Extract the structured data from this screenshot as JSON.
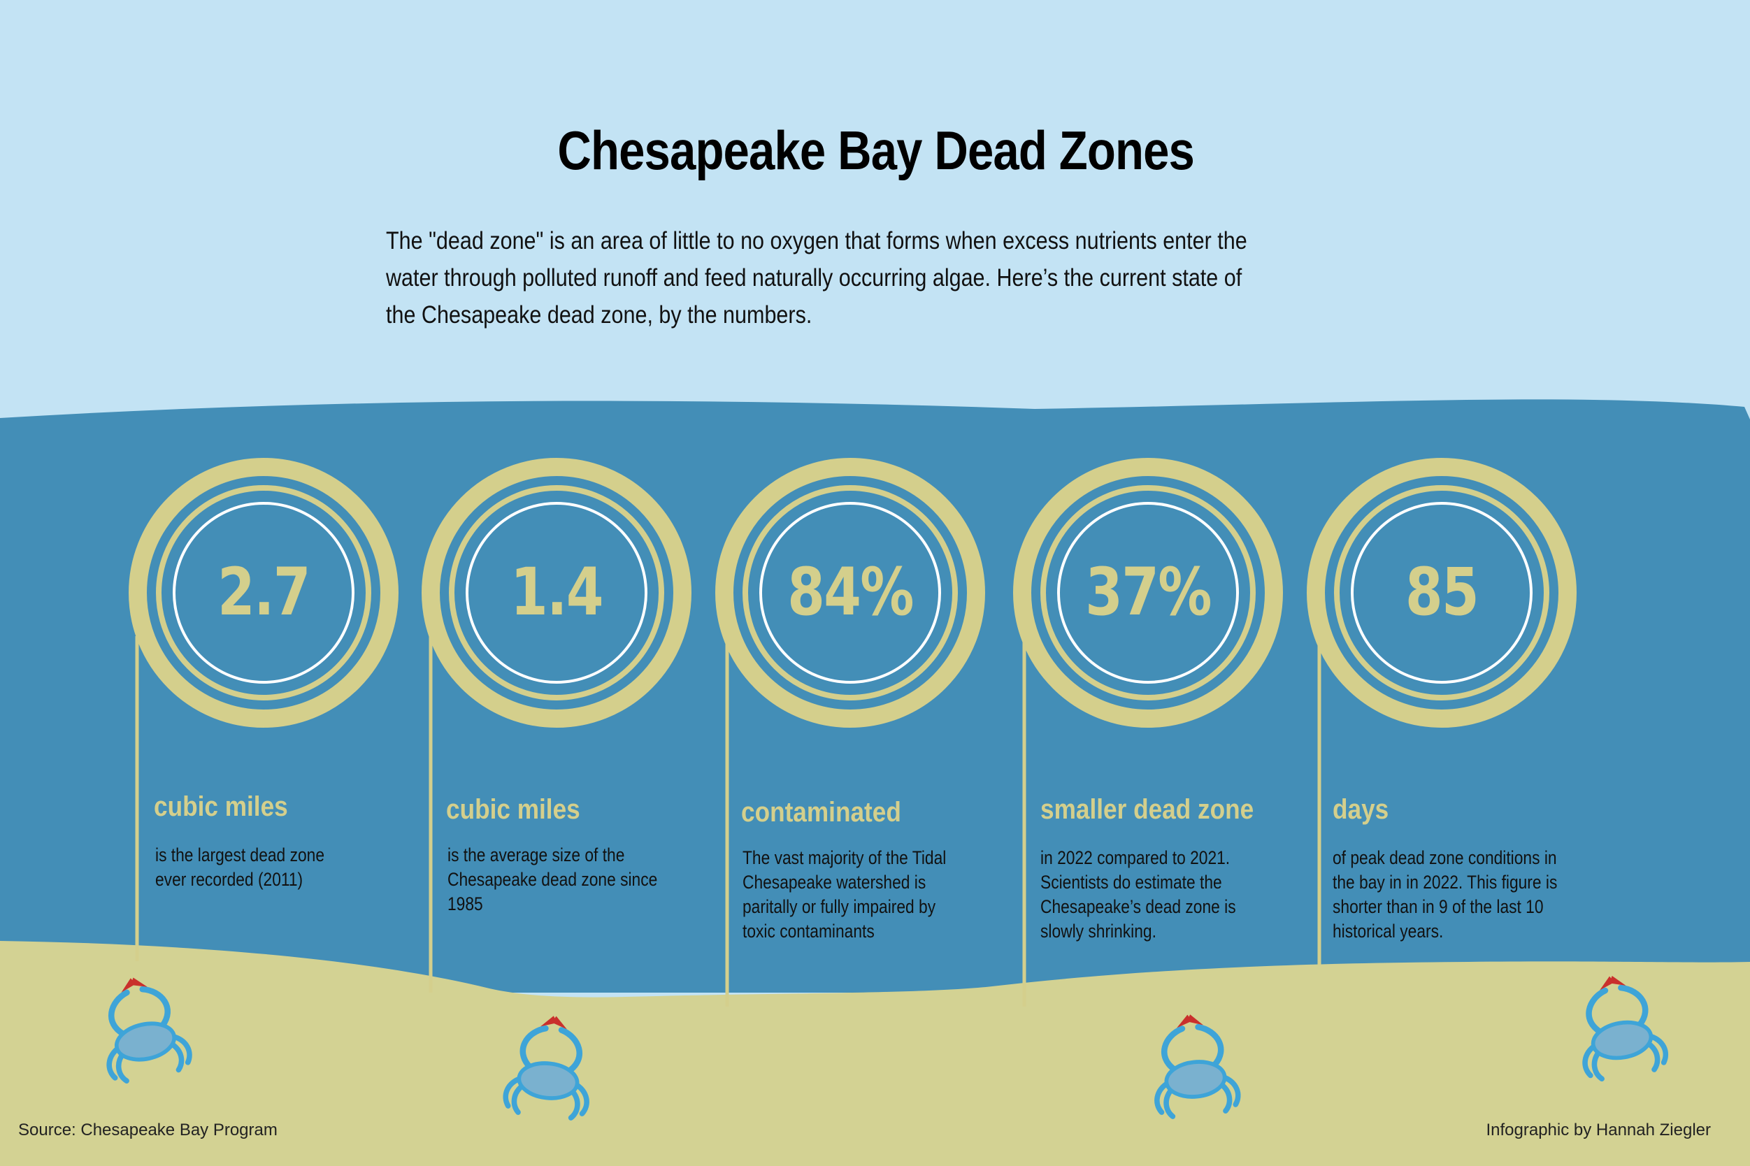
{
  "title": "Chesapeake Bay Dead Zones",
  "intro": "The \"dead zone\" is an area of little to no oxygen that forms when excess nutrients enter the water through polluted runoff and feed naturally occurring algae. Here’s the current state of the Chesapeake dead zone, by the numbers.",
  "stats": [
    {
      "value": "2.7",
      "unit": "cubic miles",
      "description": "is the largest dead zone ever recorded (2011)"
    },
    {
      "value": "1.4",
      "unit": "cubic miles",
      "description": "is the average size of the Chesapeake dead zone since 1985"
    },
    {
      "value": "84%",
      "unit": "contaminated",
      "description": "The vast majority of the Tidal Chesapeake watershed is paritally or fully impaired by toxic contaminants"
    },
    {
      "value": "37%",
      "unit": "smaller dead zone",
      "description": "in 2022 compared to 2021. Scientists do estimate the Chesapeake’s dead zone is slowly shrinking."
    },
    {
      "value": "85",
      "unit": "days",
      "description": "of peak dead zone conditions in the bay in in 2022. This figure is shorter than in 9 of the last 10 historical years."
    }
  ],
  "footer": {
    "source": "Source: Chesapeake Bay Program",
    "credit": "Infographic by Hannah Ziegler"
  },
  "colors": {
    "sky": "#c3e3f4",
    "water": "#438eb7",
    "sand": "#d3d293",
    "ring": "#d4cf8c",
    "crab": "#3ea4d8",
    "claw": "#c9302c"
  },
  "icons": [
    "crab-icon"
  ]
}
